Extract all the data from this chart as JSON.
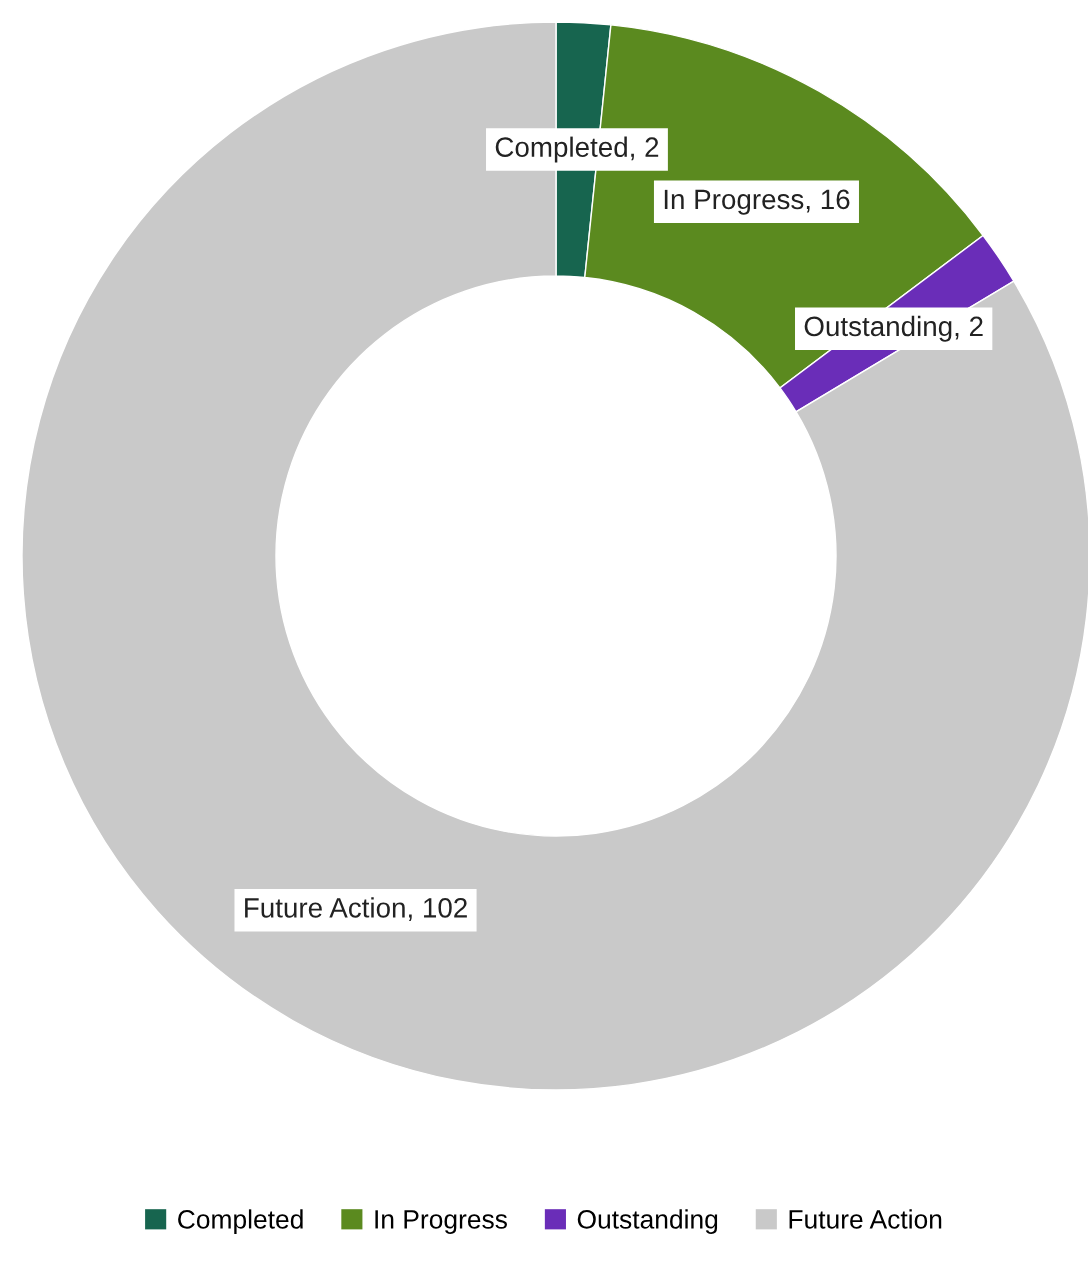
{
  "chart_data": {
    "type": "donut",
    "categories": [
      "Completed",
      "In Progress",
      "Outstanding",
      "Future Action"
    ],
    "values": [
      2,
      16,
      2,
      102
    ],
    "colors": [
      "#17654f",
      "#5b8a1f",
      "#6a2db8",
      "#c9c9c9"
    ],
    "value_labels": [
      "Completed, 2",
      "In Progress, 16",
      "Outstanding, 2",
      "Future Action, 102"
    ],
    "legend": "bottom"
  }
}
